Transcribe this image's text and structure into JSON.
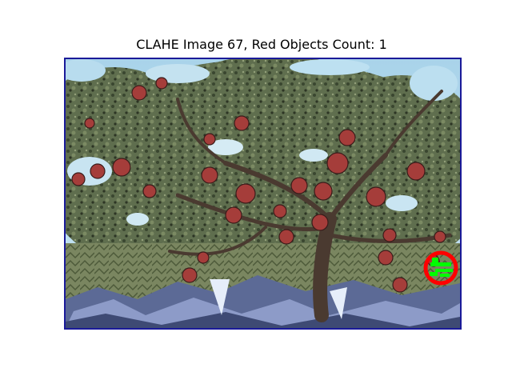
{
  "figure": {
    "title": "CLAHE Image 67, Red Objects Count: 1"
  },
  "image": {
    "description_icon": "apple-tree-photo",
    "frame_color": "#1a1a99",
    "detection_circle_color": "#ff0000",
    "detection_mask_color": "#00ff00"
  }
}
